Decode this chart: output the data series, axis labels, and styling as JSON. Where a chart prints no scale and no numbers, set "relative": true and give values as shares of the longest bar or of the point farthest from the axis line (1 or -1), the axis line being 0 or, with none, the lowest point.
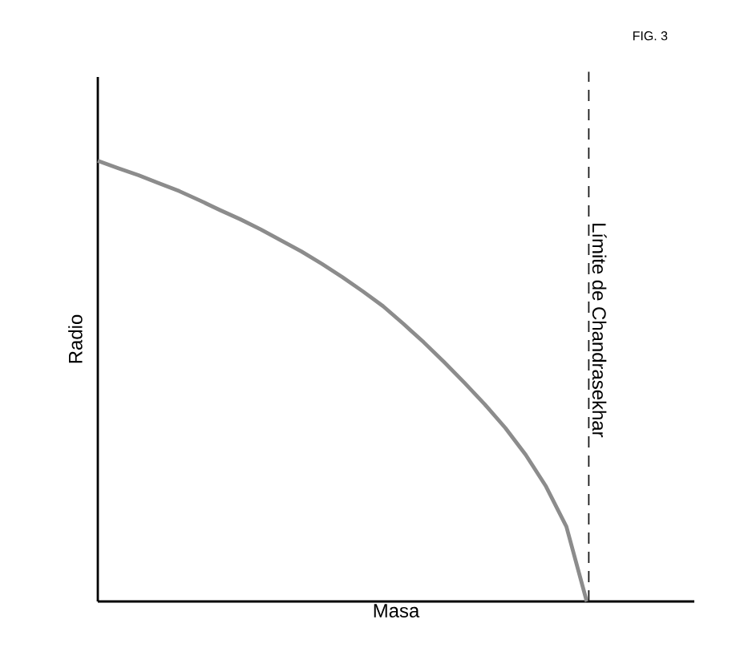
{
  "chart_data": {
    "type": "line",
    "xlabel": "Masa",
    "ylabel": "Radio",
    "relative": true,
    "annotations": [
      "FIG. 3",
      "Límite de Chandrasekhar"
    ],
    "categories": [
      null,
      null,
      null,
      null,
      null,
      null,
      null,
      null,
      null,
      null,
      null,
      null,
      null,
      null,
      null,
      null,
      null,
      null,
      null,
      null,
      null,
      null,
      null,
      null,
      null
    ],
    "series": [
      {
        "color": "#8c8c8c",
        "values": [
          1,
          0.983,
          0.967,
          0.949,
          0.931,
          0.91,
          0.888,
          0.867,
          0.844,
          0.819,
          0.794,
          0.766,
          0.736,
          0.704,
          0.67,
          0.63,
          0.588,
          0.543,
          0.496,
          0.447,
          0.394,
          0.333,
          0.261,
          0.17,
          0
        ]
      }
    ]
  }
}
